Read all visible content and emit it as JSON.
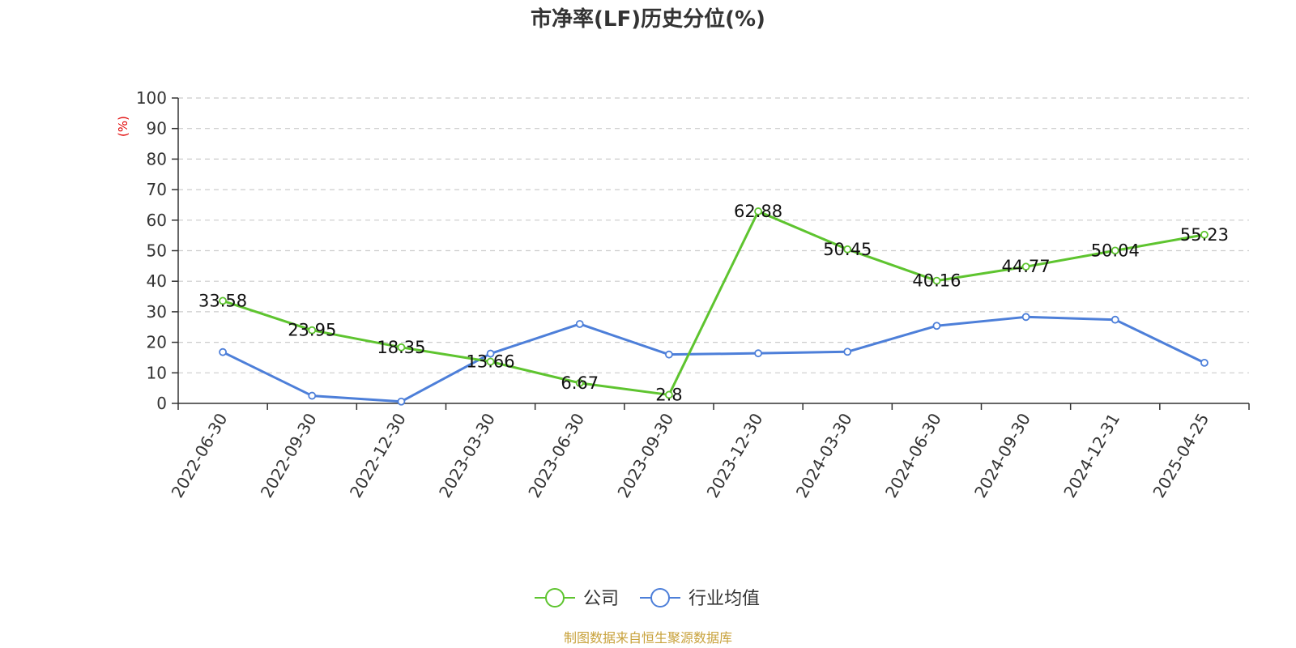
{
  "chart_data": {
    "type": "line",
    "title": "市净率(LF)历史分位(%)",
    "ylabel": "(%)",
    "ylim": [
      0,
      100
    ],
    "yticks": [
      0,
      10,
      20,
      30,
      40,
      50,
      60,
      70,
      80,
      90,
      100
    ],
    "grid": true,
    "legend_position": "bottom",
    "categories": [
      "2022-06-30",
      "2022-09-30",
      "2022-12-30",
      "2023-03-30",
      "2023-06-30",
      "2023-09-30",
      "2023-12-30",
      "2024-03-30",
      "2024-06-30",
      "2024-09-30",
      "2024-12-31",
      "2025-04-25"
    ],
    "series": [
      {
        "name": "公司",
        "color": "#5ec42f",
        "values": [
          33.58,
          23.95,
          18.35,
          13.66,
          6.67,
          2.8,
          62.88,
          50.45,
          40.16,
          44.77,
          50.04,
          55.23
        ],
        "labels": [
          "33.58",
          "23.95",
          "18.35",
          "13.66",
          "6.67",
          "2.8",
          "62.88",
          "50.45",
          "40.16",
          "44.77",
          "50.04",
          "55.23"
        ]
      },
      {
        "name": "行业均值",
        "color": "#4d7fd9",
        "values": [
          16.8,
          2.5,
          0.6,
          16.3,
          26.0,
          16.0,
          16.4,
          16.9,
          25.4,
          28.3,
          27.4,
          13.3
        ]
      }
    ]
  },
  "source_text": "制图数据来自恒生聚源数据库",
  "colors": {
    "axis": "#333333",
    "grid": "#cccccc",
    "unit": "#e00000",
    "source": "#c8a23c"
  }
}
